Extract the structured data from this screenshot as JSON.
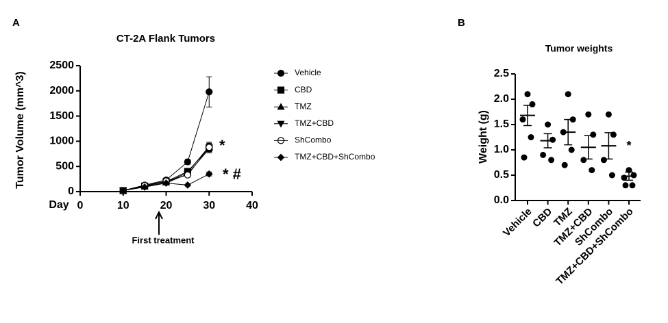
{
  "chart_data": [
    {
      "type": "line",
      "panel_label": "A",
      "title": "CT-2A Flank Tumors",
      "ylabel": "Tumor Volume (mm^3)",
      "xlabel": "Day",
      "x": [
        10,
        15,
        20,
        25,
        30
      ],
      "xlim": [
        0,
        40
      ],
      "xticks": [
        0,
        10,
        20,
        30,
        40
      ],
      "ylim": [
        0,
        2500
      ],
      "yticks": [
        0,
        500,
        1000,
        1500,
        2000,
        2500
      ],
      "series": [
        {
          "name": "Vehicle",
          "color": "#000000",
          "marker": "circle",
          "values": [
            20,
            130,
            230,
            590,
            1980
          ],
          "errors": [
            5,
            15,
            25,
            50,
            300
          ]
        },
        {
          "name": "CBD",
          "color": "#000000",
          "marker": "square",
          "values": [
            20,
            110,
            200,
            400,
            870
          ],
          "errors": [
            5,
            15,
            20,
            40,
            80
          ]
        },
        {
          "name": "TMZ",
          "color": "#000000",
          "marker": "triangle-up",
          "values": [
            20,
            100,
            180,
            380,
            900
          ],
          "errors": [
            5,
            15,
            20,
            40,
            80
          ]
        },
        {
          "name": "TMZ+CBD",
          "color": "#000000",
          "marker": "triangle-down",
          "values": [
            20,
            100,
            170,
            350,
            850
          ],
          "errors": [
            5,
            15,
            20,
            40,
            80
          ]
        },
        {
          "name": "ShCombo",
          "color": "#000000",
          "marker": "circle-open",
          "values": [
            20,
            120,
            210,
            330,
            880
          ],
          "errors": [
            5,
            15,
            20,
            40,
            80
          ]
        },
        {
          "name": "TMZ+CBD+ShCombo",
          "color": "#000000",
          "marker": "diamond",
          "values": [
            20,
            90,
            170,
            130,
            350
          ],
          "errors": [
            5,
            10,
            15,
            20,
            40
          ]
        }
      ],
      "annotations": [
        "*",
        "* #",
        "First treatment"
      ]
    },
    {
      "type": "dot",
      "panel_label": "B",
      "title": "Tumor weights",
      "ylabel": "Weight (g)",
      "categories": [
        "Vehicle",
        "CBD",
        "TMZ",
        "TMZ+CBD",
        "ShCombo",
        "TMZ+CBD+ShCombo"
      ],
      "points": [
        [
          2.1,
          1.9,
          1.6,
          1.25,
          0.85
        ],
        [
          1.5,
          1.2,
          0.9,
          0.8
        ],
        [
          2.1,
          1.6,
          1.35,
          1.0,
          0.7
        ],
        [
          1.7,
          1.3,
          0.8,
          0.6
        ],
        [
          1.7,
          1.3,
          0.8,
          0.5
        ],
        [
          0.6,
          0.5,
          0.45,
          0.3,
          0.3
        ]
      ],
      "means": [
        1.68,
        1.18,
        1.35,
        1.05,
        1.08,
        0.48
      ],
      "errors": [
        0.2,
        0.14,
        0.25,
        0.23,
        0.26,
        0.08
      ],
      "color": "#000000",
      "ylim": [
        0,
        2.5
      ],
      "yticks": [
        {
          "value": 0,
          "label": "0.0"
        },
        0.5,
        {
          "value": 1,
          "label": "1.0"
        },
        1.5,
        {
          "value": 2,
          "label": "2.0"
        },
        2.5
      ],
      "annotations": [
        "*"
      ]
    }
  ]
}
